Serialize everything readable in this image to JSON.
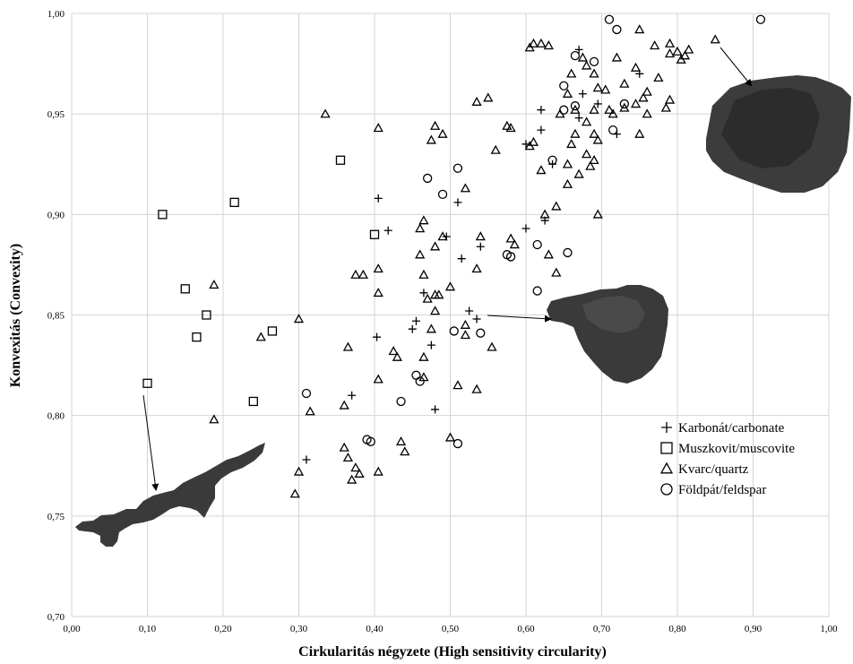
{
  "chart_data": {
    "type": "scatter",
    "xlabel": "Cirkularitás négyzete (High sensitivity circularity)",
    "ylabel": "Konvexitás (Convexity)",
    "xlim": [
      0,
      1.0
    ],
    "ylim": [
      0.7,
      1.0
    ],
    "x_ticks": [
      "0,00",
      "0,10",
      "0,20",
      "0,30",
      "0,40",
      "0,50",
      "0,60",
      "0,70",
      "0,80",
      "0,90",
      "1,00"
    ],
    "y_ticks": [
      "0,70",
      "0,75",
      "0,80",
      "0,85",
      "0,90",
      "0,95",
      "1,00"
    ],
    "grid": true,
    "legend_position": "right",
    "series": [
      {
        "name": "Karbonát/carbonate",
        "marker": "plus",
        "points": [
          [
            0.405,
            0.908
          ],
          [
            0.418,
            0.892
          ],
          [
            0.403,
            0.839
          ],
          [
            0.37,
            0.81
          ],
          [
            0.31,
            0.778
          ],
          [
            0.48,
            0.803
          ],
          [
            0.475,
            0.835
          ],
          [
            0.455,
            0.847
          ],
          [
            0.45,
            0.843
          ],
          [
            0.465,
            0.861
          ],
          [
            0.495,
            0.889
          ],
          [
            0.51,
            0.906
          ],
          [
            0.515,
            0.878
          ],
          [
            0.525,
            0.852
          ],
          [
            0.535,
            0.848
          ],
          [
            0.54,
            0.884
          ],
          [
            0.6,
            0.893
          ],
          [
            0.625,
            0.897
          ],
          [
            0.62,
            0.952
          ],
          [
            0.62,
            0.942
          ],
          [
            0.67,
            0.948
          ],
          [
            0.675,
            0.96
          ],
          [
            0.695,
            0.955
          ],
          [
            0.67,
            0.982
          ],
          [
            0.75,
            0.97
          ],
          [
            0.72,
            0.94
          ],
          [
            0.635,
            0.925
          ],
          [
            0.6,
            0.935
          ]
        ]
      },
      {
        "name": "Muszkovit/muscovite",
        "marker": "square",
        "points": [
          [
            0.12,
            0.9
          ],
          [
            0.215,
            0.906
          ],
          [
            0.15,
            0.863
          ],
          [
            0.178,
            0.85
          ],
          [
            0.165,
            0.839
          ],
          [
            0.265,
            0.842
          ],
          [
            0.24,
            0.807
          ],
          [
            0.1,
            0.816
          ],
          [
            0.355,
            0.927
          ],
          [
            0.4,
            0.89
          ]
        ]
      },
      {
        "name": "Kvarc/quartz",
        "marker": "triangle",
        "points": [
          [
            0.335,
            0.95
          ],
          [
            0.405,
            0.943
          ],
          [
            0.188,
            0.865
          ],
          [
            0.25,
            0.839
          ],
          [
            0.3,
            0.848
          ],
          [
            0.188,
            0.798
          ],
          [
            0.315,
            0.802
          ],
          [
            0.365,
            0.834
          ],
          [
            0.375,
            0.87
          ],
          [
            0.385,
            0.87
          ],
          [
            0.405,
            0.873
          ],
          [
            0.405,
            0.861
          ],
          [
            0.405,
            0.818
          ],
          [
            0.425,
            0.832
          ],
          [
            0.43,
            0.829
          ],
          [
            0.36,
            0.805
          ],
          [
            0.36,
            0.784
          ],
          [
            0.365,
            0.779
          ],
          [
            0.375,
            0.774
          ],
          [
            0.38,
            0.771
          ],
          [
            0.37,
            0.768
          ],
          [
            0.3,
            0.772
          ],
          [
            0.295,
            0.761
          ],
          [
            0.405,
            0.772
          ],
          [
            0.435,
            0.787
          ],
          [
            0.44,
            0.782
          ],
          [
            0.46,
            0.88
          ],
          [
            0.46,
            0.893
          ],
          [
            0.465,
            0.897
          ],
          [
            0.465,
            0.87
          ],
          [
            0.47,
            0.858
          ],
          [
            0.465,
            0.829
          ],
          [
            0.465,
            0.819
          ],
          [
            0.475,
            0.843
          ],
          [
            0.48,
            0.852
          ],
          [
            0.48,
            0.86
          ],
          [
            0.485,
            0.86
          ],
          [
            0.48,
            0.884
          ],
          [
            0.49,
            0.889
          ],
          [
            0.5,
            0.864
          ],
          [
            0.5,
            0.789
          ],
          [
            0.51,
            0.815
          ],
          [
            0.52,
            0.845
          ],
          [
            0.52,
            0.84
          ],
          [
            0.535,
            0.813
          ],
          [
            0.535,
            0.873
          ],
          [
            0.54,
            0.889
          ],
          [
            0.555,
            0.834
          ],
          [
            0.475,
            0.937
          ],
          [
            0.48,
            0.944
          ],
          [
            0.49,
            0.94
          ],
          [
            0.52,
            0.913
          ],
          [
            0.535,
            0.956
          ],
          [
            0.55,
            0.958
          ],
          [
            0.56,
            0.932
          ],
          [
            0.575,
            0.944
          ],
          [
            0.58,
            0.943
          ],
          [
            0.58,
            0.888
          ],
          [
            0.585,
            0.885
          ],
          [
            0.605,
            0.934
          ],
          [
            0.61,
            0.936
          ],
          [
            0.62,
            0.922
          ],
          [
            0.625,
            0.9
          ],
          [
            0.63,
            0.88
          ],
          [
            0.64,
            0.871
          ],
          [
            0.64,
            0.904
          ],
          [
            0.66,
            0.935
          ],
          [
            0.655,
            0.925
          ],
          [
            0.665,
            0.94
          ],
          [
            0.67,
            0.92
          ],
          [
            0.68,
            0.93
          ],
          [
            0.685,
            0.924
          ],
          [
            0.69,
            0.927
          ],
          [
            0.695,
            0.937
          ],
          [
            0.69,
            0.94
          ],
          [
            0.68,
            0.946
          ],
          [
            0.645,
            0.95
          ],
          [
            0.655,
            0.96
          ],
          [
            0.66,
            0.97
          ],
          [
            0.665,
            0.952
          ],
          [
            0.675,
            0.978
          ],
          [
            0.68,
            0.974
          ],
          [
            0.69,
            0.97
          ],
          [
            0.695,
            0.963
          ],
          [
            0.69,
            0.952
          ],
          [
            0.705,
            0.962
          ],
          [
            0.715,
            0.95
          ],
          [
            0.72,
            0.978
          ],
          [
            0.73,
            0.965
          ],
          [
            0.73,
            0.953
          ],
          [
            0.745,
            0.973
          ],
          [
            0.745,
            0.955
          ],
          [
            0.75,
            0.992
          ],
          [
            0.755,
            0.958
          ],
          [
            0.76,
            0.95
          ],
          [
            0.76,
            0.961
          ],
          [
            0.77,
            0.984
          ],
          [
            0.775,
            0.968
          ],
          [
            0.785,
            0.953
          ],
          [
            0.79,
            0.957
          ],
          [
            0.79,
            0.985
          ],
          [
            0.79,
            0.98
          ],
          [
            0.8,
            0.981
          ],
          [
            0.805,
            0.977
          ],
          [
            0.81,
            0.979
          ],
          [
            0.815,
            0.982
          ],
          [
            0.85,
            0.987
          ],
          [
            0.605,
            0.983
          ],
          [
            0.61,
            0.985
          ],
          [
            0.62,
            0.985
          ],
          [
            0.63,
            0.984
          ],
          [
            0.695,
            0.9
          ],
          [
            0.75,
            0.94
          ],
          [
            0.71,
            0.952
          ],
          [
            0.655,
            0.915
          ]
        ]
      },
      {
        "name": "Földpát/feldspar",
        "marker": "circle",
        "points": [
          [
            0.31,
            0.811
          ],
          [
            0.39,
            0.788
          ],
          [
            0.395,
            0.787
          ],
          [
            0.435,
            0.807
          ],
          [
            0.455,
            0.82
          ],
          [
            0.46,
            0.817
          ],
          [
            0.47,
            0.918
          ],
          [
            0.49,
            0.91
          ],
          [
            0.51,
            0.923
          ],
          [
            0.505,
            0.842
          ],
          [
            0.51,
            0.786
          ],
          [
            0.54,
            0.841
          ],
          [
            0.575,
            0.88
          ],
          [
            0.58,
            0.879
          ],
          [
            0.615,
            0.885
          ],
          [
            0.615,
            0.862
          ],
          [
            0.635,
            0.927
          ],
          [
            0.65,
            0.964
          ],
          [
            0.65,
            0.952
          ],
          [
            0.655,
            0.881
          ],
          [
            0.665,
            0.979
          ],
          [
            0.665,
            0.954
          ],
          [
            0.69,
            0.976
          ],
          [
            0.71,
            0.997
          ],
          [
            0.715,
            0.942
          ],
          [
            0.72,
            0.992
          ],
          [
            0.73,
            0.955
          ],
          [
            0.91,
            0.997
          ]
        ]
      }
    ]
  }
}
